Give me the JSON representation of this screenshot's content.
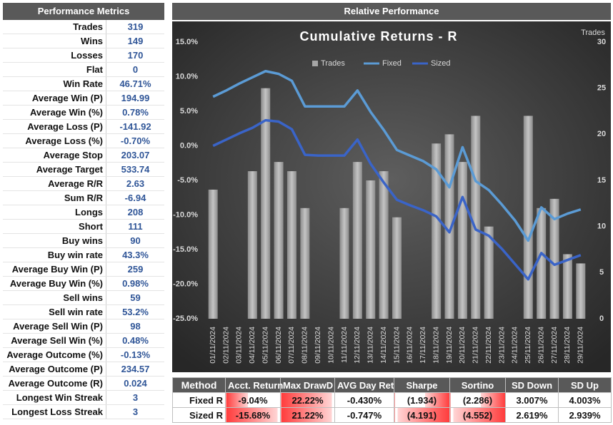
{
  "metrics": {
    "title": "Performance Metrics",
    "rows": [
      [
        "Trades",
        "319"
      ],
      [
        "Wins",
        "149"
      ],
      [
        "Losses",
        "170"
      ],
      [
        "Flat",
        "0"
      ],
      [
        "Win Rate",
        "46.71%"
      ],
      [
        "Average Win (P)",
        "194.99"
      ],
      [
        "Average Win (%)",
        "0.78%"
      ],
      [
        "Average Loss (P)",
        "-141.92"
      ],
      [
        "Average Loss (%)",
        "-0.70%"
      ],
      [
        "Average Stop",
        "203.07"
      ],
      [
        "Average Target",
        "533.74"
      ],
      [
        "Average R/R",
        "2.63"
      ],
      [
        "Sum R/R",
        "-6.94"
      ],
      [
        "Longs",
        "208"
      ],
      [
        "Short",
        "111"
      ],
      [
        "Buy wins",
        "90"
      ],
      [
        "Buy win rate",
        "43.3%"
      ],
      [
        "Average Buy Win (P)",
        "259"
      ],
      [
        "Average Buy Win (%)",
        "0.98%"
      ],
      [
        "Sell wins",
        "59"
      ],
      [
        "Sell win rate",
        "53.2%"
      ],
      [
        "Average Sell Win (P)",
        "98"
      ],
      [
        "Average Sell Win (%)",
        "0.48%"
      ],
      [
        "Average Outcome (%)",
        "-0.13%"
      ],
      [
        "Average Outcome (P)",
        "234.57"
      ],
      [
        "Average Outcome (R)",
        "0.024"
      ],
      [
        "Longest Win Streak",
        "3"
      ],
      [
        "Longest Loss Streak",
        "3"
      ]
    ]
  },
  "panel_title": "Relative Performance",
  "chart_data": {
    "type": "bar_line",
    "title": "Cumulative Returns - R",
    "y2_label": "Trades",
    "legend": "top",
    "categories": [
      "01/11/2024",
      "02/11/2024",
      "03/11/2024",
      "04/11/2024",
      "05/11/2024",
      "06/11/2024",
      "07/11/2024",
      "08/11/2024",
      "09/11/2024",
      "10/11/2024",
      "11/11/2024",
      "12/11/2024",
      "13/11/2024",
      "14/11/2024",
      "15/11/2024",
      "16/11/2024",
      "17/11/2024",
      "18/11/2024",
      "19/11/2024",
      "20/11/2024",
      "21/11/2024",
      "22/11/2024",
      "23/11/2024",
      "24/11/2024",
      "25/11/2024",
      "26/11/2024",
      "27/11/2024",
      "28/11/2024",
      "29/11/2024"
    ],
    "series": [
      {
        "name": "Trades",
        "type": "bar",
        "axis": "y2",
        "color": "#a6a6a6",
        "values": [
          14,
          0,
          0,
          16,
          25,
          17,
          16,
          12,
          0,
          0,
          12,
          17,
          15,
          16,
          11,
          0,
          0,
          19,
          20,
          17,
          22,
          10,
          0,
          0,
          22,
          12,
          13,
          7,
          6
        ]
      },
      {
        "name": "Fixed",
        "type": "line",
        "color": "#5b9bd5",
        "values": [
          7.1,
          8.0,
          9.0,
          9.9,
          10.8,
          10.4,
          9.4,
          5.7,
          5.7,
          5.7,
          5.7,
          8.0,
          4.9,
          2.3,
          -0.6,
          -1.4,
          -2.2,
          -3.4,
          -6.0,
          -0.2,
          -5.1,
          -6.4,
          -8.5,
          -10.8,
          -13.7,
          -8.9,
          -10.6,
          -9.8,
          -9.2
        ]
      },
      {
        "name": "Sized",
        "type": "line",
        "color": "#3a64c8",
        "values": [
          0.0,
          0.9,
          1.8,
          2.6,
          3.7,
          3.5,
          2.4,
          -1.3,
          -1.4,
          -1.4,
          -1.4,
          0.9,
          -2.6,
          -5.3,
          -7.8,
          -8.6,
          -9.3,
          -10.2,
          -12.5,
          -7.4,
          -12.1,
          -13.0,
          -14.9,
          -17.1,
          -19.3,
          -15.5,
          -17.2,
          -16.5,
          -15.8
        ]
      }
    ],
    "ylim": [
      -25,
      15
    ],
    "yticks": [
      {
        "value": -25,
        "label": "-25.0%"
      },
      {
        "value": -20,
        "label": "-20.0%"
      },
      {
        "value": -15,
        "label": "-15.0%"
      },
      {
        "value": -10,
        "label": "-10.0%"
      },
      {
        "value": -5,
        "label": "-5.0%"
      },
      {
        "value": 0,
        "label": "0.0%"
      },
      {
        "value": 5,
        "label": "5.0%"
      },
      {
        "value": 10,
        "label": "10.0%"
      },
      {
        "value": 15,
        "label": "15.0%"
      }
    ],
    "y2lim": [
      0,
      30
    ],
    "y2ticks": [
      0,
      5,
      10,
      15,
      20,
      25,
      30
    ]
  },
  "stats": {
    "header": [
      "Method",
      "Acct. Return",
      "Max DrawD",
      "AVG Day Ret",
      "Sharpe",
      "Sortino",
      "SD Down",
      "SD Up"
    ],
    "rows": [
      [
        "Fixed R",
        "-9.04%",
        "22.22%",
        "-0.430%",
        "(1.934)",
        "(2.286)",
        "3.007%",
        "4.003%"
      ],
      [
        "Sized R",
        "-15.68%",
        "21.22%",
        "-0.747%",
        "(4.191)",
        "(4.552)",
        "2.619%",
        "2.939%"
      ]
    ]
  }
}
